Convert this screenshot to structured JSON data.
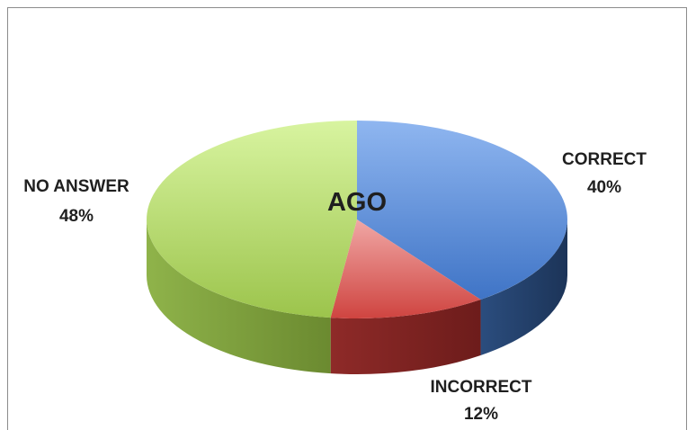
{
  "chart_data": {
    "type": "pie",
    "center_text": "AGO",
    "categories": [
      "CORRECT",
      "INCORRECT",
      "NO ANSWER"
    ],
    "values": [
      40,
      12,
      48
    ],
    "value_labels": [
      "40%",
      "12%",
      "48%"
    ],
    "colors": [
      "#4f84d6",
      "#d9534f",
      "#a8cd5a"
    ],
    "legend": "none"
  }
}
